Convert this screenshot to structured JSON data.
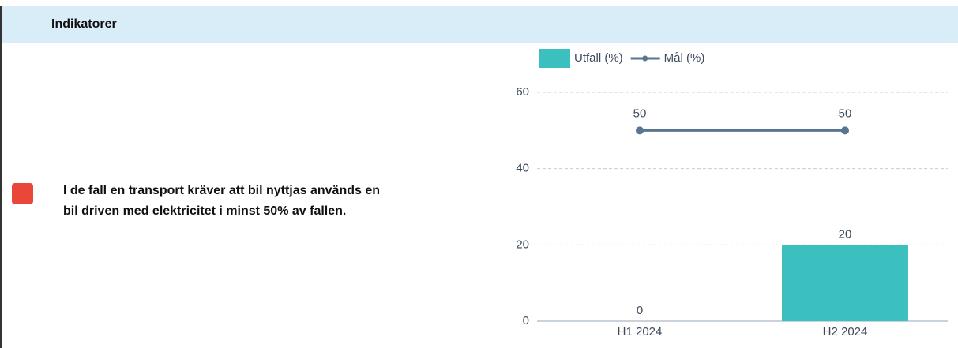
{
  "header": {
    "title": "Indikatorer"
  },
  "indicator": {
    "status_color": "#e8473a",
    "text_lines": [
      "I de fall en transport kräver att bil nyttjas används en",
      "bil driven med elektricitet i minst 50% av fallen."
    ]
  },
  "chart_data": {
    "type": "bar",
    "categories": [
      "H1 2024",
      "H2 2024"
    ],
    "series": [
      {
        "name": "Utfall (%)",
        "type": "bar",
        "color": "#3bbfbf",
        "values": [
          0,
          20
        ]
      },
      {
        "name": "Mål (%)",
        "type": "line",
        "color": "#5a7590",
        "values": [
          50,
          50
        ]
      }
    ],
    "ylim": [
      0,
      60
    ],
    "yticks": [
      0,
      20,
      40,
      60
    ],
    "grid": true,
    "legend": "top"
  }
}
